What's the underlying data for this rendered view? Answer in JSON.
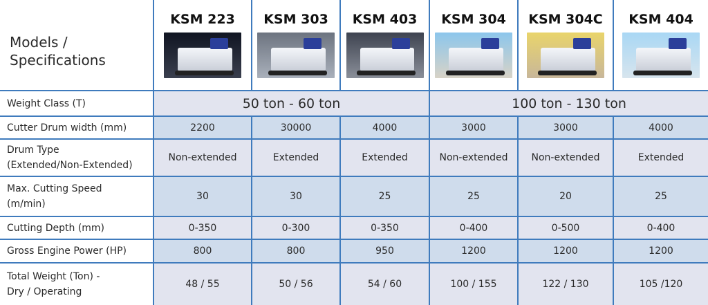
{
  "header": {
    "corner_label": "Models / Specifications",
    "models": [
      {
        "name": "KSM 223",
        "photo_bg": "linear-gradient(#101522,#3a3f4e)"
      },
      {
        "name": "KSM 303",
        "photo_bg": "linear-gradient(#6d7480,#a9b0bb)"
      },
      {
        "name": "KSM 403",
        "photo_bg": "linear-gradient(#3e4350,#8a8f99)"
      },
      {
        "name": "KSM 304",
        "photo_bg": "linear-gradient(#8cc6ec,#d8d3c7)"
      },
      {
        "name": "KSM 304C",
        "photo_bg": "linear-gradient(#e9d46b,#c8b79a)"
      },
      {
        "name": "KSM 404",
        "photo_bg": "linear-gradient(#a9d7f4,#d7e5ee)"
      }
    ]
  },
  "rows": {
    "weight_class": {
      "label": "Weight Class (T)",
      "groups": [
        "50 ton - 60 ton",
        "100 ton - 130 ton"
      ]
    },
    "drum_width": {
      "label": "Cutter Drum width (mm)",
      "values": [
        "2200",
        "30000",
        "4000",
        "3000",
        "3000",
        "4000"
      ]
    },
    "drum_type": {
      "label_1": "Drum Type",
      "label_2": "(Extended/Non-Extended)",
      "values": [
        "Non-extended",
        "Extended",
        "Extended",
        "Non-extended",
        "Non-extended",
        "Extended"
      ]
    },
    "cutting_speed": {
      "label_1": "Max. Cutting Speed",
      "label_2": "(m/min)",
      "values": [
        "30",
        "30",
        "25",
        "25",
        "20",
        "25"
      ]
    },
    "cutting_depth": {
      "label": "Cutting Depth (mm)",
      "values": [
        "0-350",
        "0-300",
        "0-350",
        "0-400",
        "0-500",
        "0-400"
      ]
    },
    "engine_power": {
      "label": "Gross Engine Power (HP)",
      "values": [
        "800",
        "800",
        "950",
        "1200",
        "1200",
        "1200"
      ]
    },
    "total_weight": {
      "label_1": "Total Weight (Ton) -",
      "label_2": "Dry / Operating",
      "values": [
        "48 / 55",
        "50 / 56",
        "54 / 60",
        "100 / 155",
        "122 / 130",
        "105 /120"
      ]
    }
  },
  "colors": {
    "grid": "#3f7bbd",
    "cell": "#e2e4ef",
    "cell_alt": "#cfdcec"
  }
}
